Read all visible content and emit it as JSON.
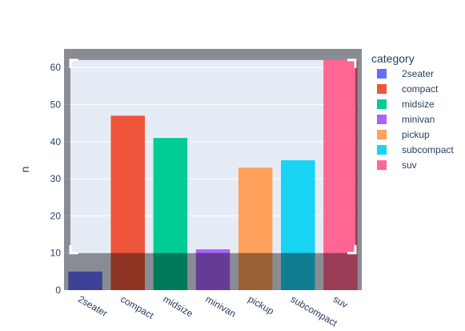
{
  "chart_data": {
    "type": "bar",
    "categories": [
      "2seater",
      "compact",
      "midsize",
      "minivan",
      "pickup",
      "subcompact",
      "suv"
    ],
    "values": [
      5,
      47,
      41,
      11,
      33,
      35,
      62
    ],
    "colors": [
      "#636efa",
      "#EF553B",
      "#00cc96",
      "#ab63fa",
      "#FFA15A",
      "#19d3f3",
      "#FF6692"
    ],
    "xlabel": "",
    "ylabel": "n",
    "ylim": [
      0,
      65
    ],
    "yticks": [
      0,
      10,
      20,
      30,
      40,
      50,
      60
    ],
    "grid": true,
    "legend": {
      "title": "category",
      "placement": "right",
      "entries": [
        "2seater",
        "compact",
        "midsize",
        "minivan",
        "pickup",
        "subcompact",
        "suv"
      ]
    },
    "overlay": {
      "description": "zoom-selection",
      "y_from": 10,
      "y_to": 62
    }
  }
}
